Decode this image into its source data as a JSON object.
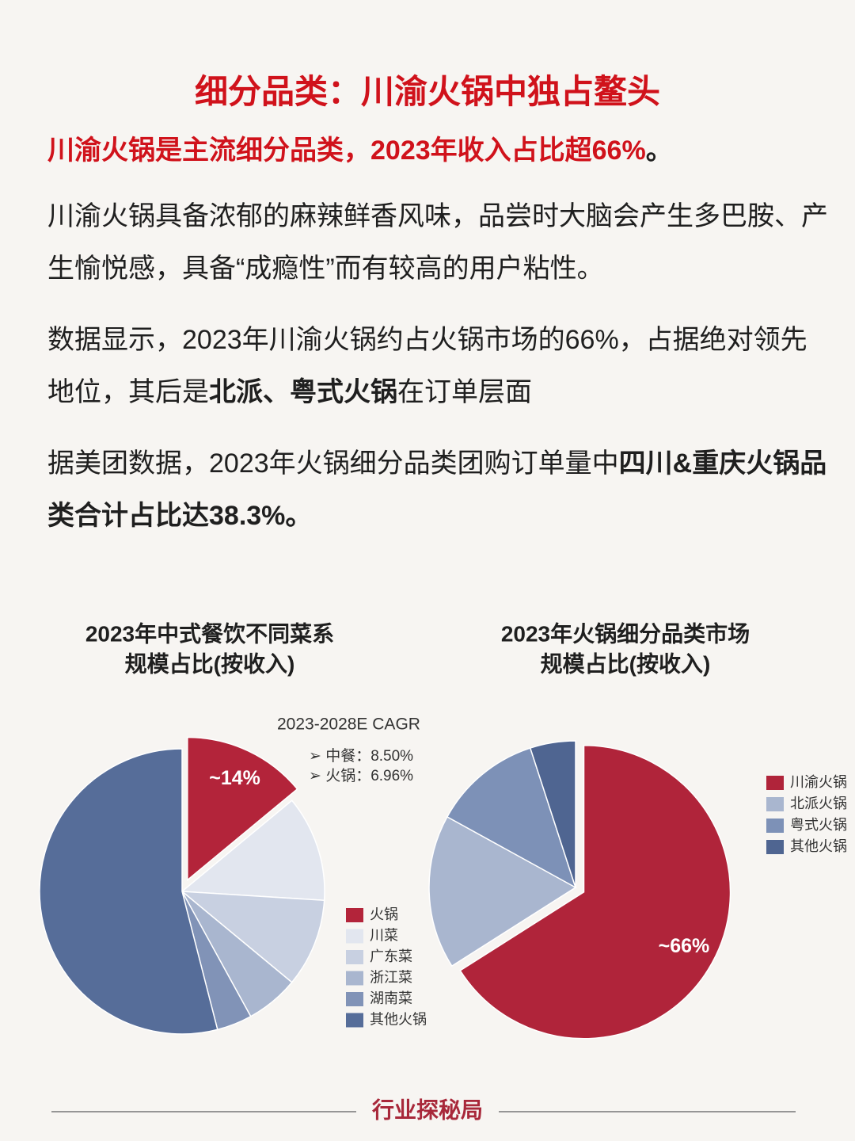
{
  "header": {
    "title": "细分品类：川渝火锅中独占鳌头",
    "subtitle": [
      {
        "text": "川渝火锅是主流细分品类，2023年收入占比超66%"
      },
      {
        "text": "。",
        "color": "#1f1f1f"
      }
    ]
  },
  "paragraphs": [
    [
      {
        "text": "川渝火锅具备浓郁的麻辣鲜香风味，品尝时大脑会产生多巴胺、产生愉悦感，具备“成瘾性”而有较高的用户粘性。"
      }
    ],
    [
      {
        "text": "数据显示，2023年川渝火锅约占火锅市场的66%，占据绝对领先地位，其后是"
      },
      {
        "text": "北派、粤式火锅",
        "bold": true
      },
      {
        "text": "在订单层面"
      }
    ],
    [
      {
        "text": "据美团数据，2023年火锅细分品类团购订单量中"
      },
      {
        "text": "四川&重庆火锅品类合计占比达38.3%。",
        "bold": true
      }
    ]
  ],
  "chart_data": [
    {
      "type": "pie",
      "title": [
        "2023年中式餐饮不同菜系",
        "规模占比(按收入)"
      ],
      "categories": [
        "火锅",
        "川菜",
        "广东菜",
        "浙江菜",
        "湖南菜",
        "其他火锅"
      ],
      "values": [
        14,
        12,
        10,
        6,
        4,
        54
      ],
      "value_labels": [
        "~14%",
        null,
        null,
        null,
        null,
        null
      ],
      "colors": [
        "#b3243a",
        "#e2e6ef",
        "#c8d0e1",
        "#a9b6cf",
        "#8193b7",
        "#566d99"
      ],
      "explode": [
        true,
        false,
        false,
        false,
        false,
        false
      ],
      "annotations": [
        "2023-2028E CAGR",
        "➢ 中餐：8.50%",
        "➢ 火锅：6.96%"
      ]
    },
    {
      "type": "pie",
      "title": [
        "2023年火锅细分品类市场",
        "规模占比(按收入)"
      ],
      "categories": [
        "川渝火锅",
        "北派火锅",
        "粤式火锅",
        "其他火锅"
      ],
      "values": [
        66,
        17,
        12,
        5
      ],
      "value_labels": [
        "~66%",
        null,
        null,
        null
      ],
      "colors": [
        "#b0243a",
        "#a9b6cf",
        "#7d91b7",
        "#4f6591"
      ],
      "explode": [
        true,
        false,
        false,
        false
      ]
    }
  ],
  "footer": "行业探秘局"
}
